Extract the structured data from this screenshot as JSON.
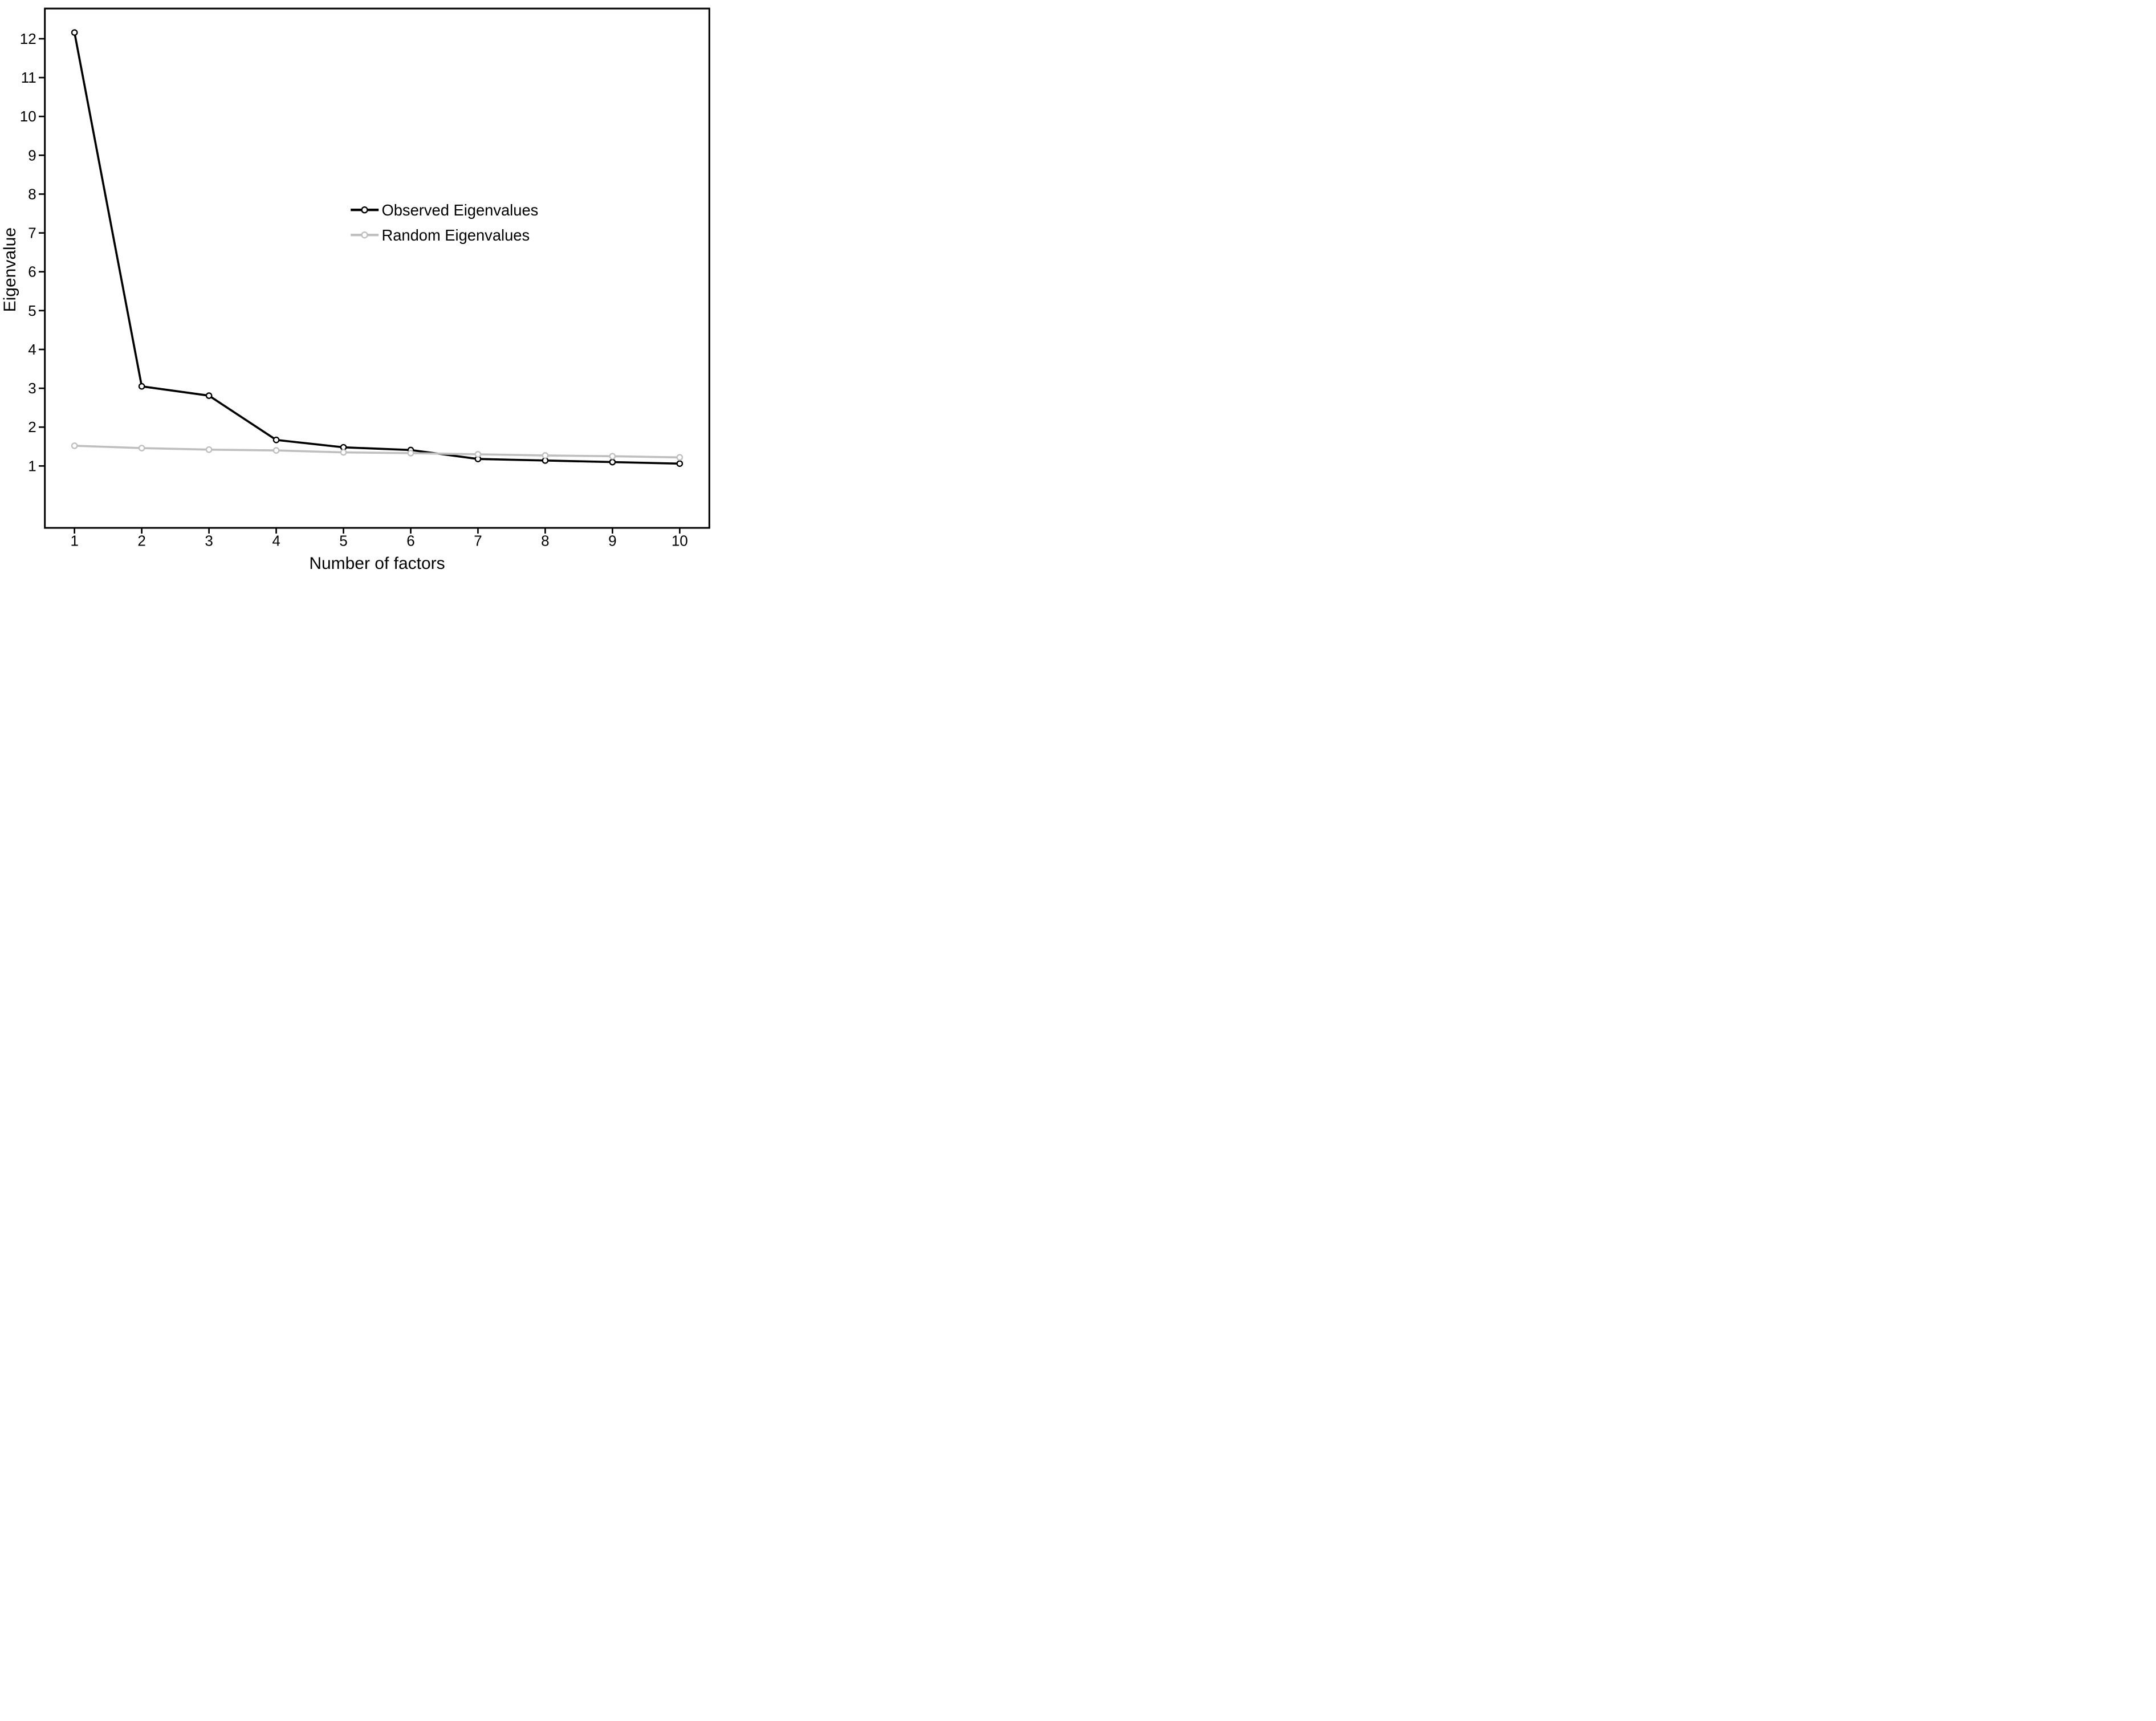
{
  "chart_data": {
    "type": "line",
    "title": "",
    "xlabel": "Number of factors",
    "ylabel": "Eigenvalue",
    "x": [
      1,
      2,
      3,
      4,
      5,
      6,
      7,
      8,
      9,
      10
    ],
    "series": [
      {
        "name": "Observed Eigenvalues",
        "color": "#000000",
        "marker": "open-circle",
        "values": [
          12.16,
          3.05,
          2.81,
          1.67,
          1.48,
          1.41,
          1.18,
          1.14,
          1.1,
          1.06
        ]
      },
      {
        "name": "Random Eigenvalues",
        "color": "#bfbfbf",
        "marker": "open-circle",
        "values": [
          1.52,
          1.46,
          1.42,
          1.4,
          1.35,
          1.33,
          1.3,
          1.27,
          1.25,
          1.22
        ]
      }
    ],
    "x_ticks": [
      "1",
      "2",
      "3",
      "4",
      "5",
      "6",
      "7",
      "8",
      "9",
      "10"
    ],
    "y_ticks": [
      "1",
      "2",
      "3",
      "4",
      "5",
      "6",
      "7",
      "8",
      "9",
      "10",
      "11",
      "12"
    ],
    "xlim": [
      0.56,
      10.44
    ],
    "ylim": [
      -0.6,
      12.78
    ],
    "grid": false,
    "legend_position": "center-right",
    "background_color": "#ffffff",
    "axis_color": "#000000"
  }
}
